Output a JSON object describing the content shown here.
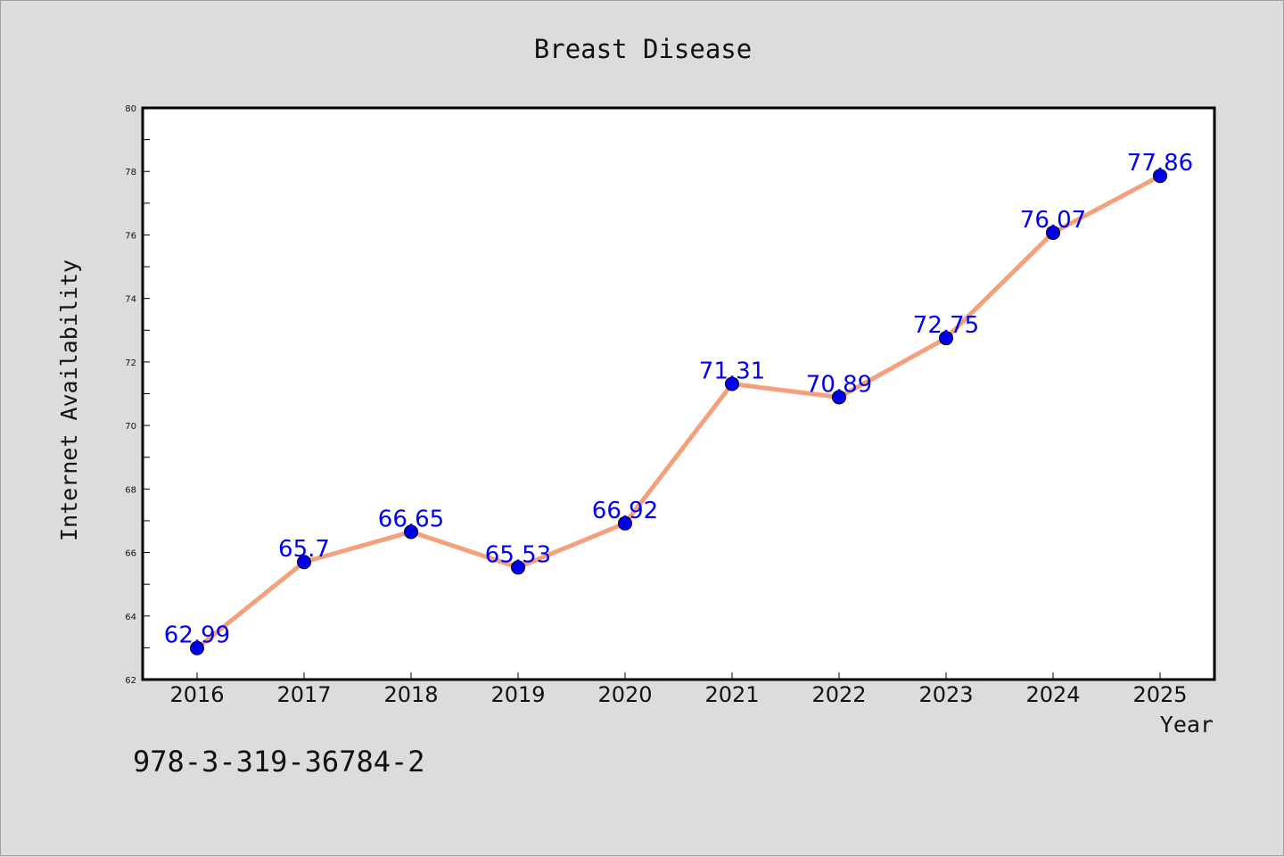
{
  "chart_data": {
    "type": "line",
    "title": "Breast Disease",
    "xlabel": "Year",
    "ylabel": "Internet Availability",
    "x": [
      "2016",
      "2017",
      "2018",
      "2019",
      "2020",
      "2021",
      "2022",
      "2023",
      "2024",
      "2025"
    ],
    "series": [
      {
        "values": [
          62.99,
          65.7,
          66.65,
          65.53,
          66.92,
          71.31,
          70.89,
          72.75,
          76.07,
          77.86
        ]
      }
    ],
    "data_labels": [
      "62.99",
      "65.7",
      "66.65",
      "65.53",
      "66.92",
      "71.31",
      "70.89",
      "72.75",
      "76.07",
      "77.86"
    ],
    "ylim": [
      62,
      80
    ],
    "yticks": [
      62,
      64,
      66,
      68,
      70,
      72,
      74,
      76,
      78,
      80
    ],
    "grid": false,
    "line_color": "#f4a07c",
    "marker_color": "#0000ee",
    "label_color": "#0000ee"
  },
  "footer": {
    "isbn": "978-3-319-36784-2"
  }
}
